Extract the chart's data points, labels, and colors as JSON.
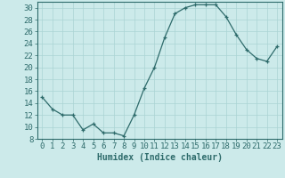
{
  "x": [
    0,
    1,
    2,
    3,
    4,
    5,
    6,
    7,
    8,
    9,
    10,
    11,
    12,
    13,
    14,
    15,
    16,
    17,
    18,
    19,
    20,
    21,
    22,
    23
  ],
  "y": [
    15,
    13,
    12,
    12,
    9.5,
    10.5,
    9,
    9,
    8.5,
    12,
    16.5,
    20,
    25,
    29,
    30,
    30.5,
    30.5,
    30.5,
    28.5,
    25.5,
    23,
    21.5,
    21,
    23.5
  ],
  "xlabel": "Humidex (Indice chaleur)",
  "xlim": [
    -0.5,
    23.5
  ],
  "ylim": [
    8,
    31
  ],
  "yticks": [
    8,
    10,
    12,
    14,
    16,
    18,
    20,
    22,
    24,
    26,
    28,
    30
  ],
  "xticks": [
    0,
    1,
    2,
    3,
    4,
    5,
    6,
    7,
    8,
    9,
    10,
    11,
    12,
    13,
    14,
    15,
    16,
    17,
    18,
    19,
    20,
    21,
    22,
    23
  ],
  "line_color": "#2e6b6b",
  "marker_color": "#2e6b6b",
  "bg_color": "#cceaea",
  "grid_color": "#aad4d4",
  "axis_color": "#2e6b6b",
  "xlabel_fontsize": 7,
  "tick_fontsize": 6.5
}
